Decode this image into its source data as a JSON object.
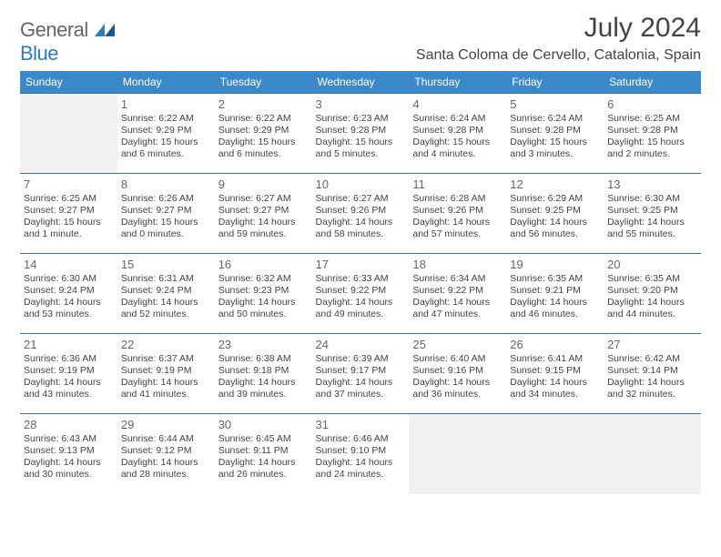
{
  "logo": {
    "top": "General",
    "bottom": "Blue",
    "top_color": "#666666",
    "bottom_color": "#2f7bbf"
  },
  "title": "July 2024",
  "location": "Santa Coloma de Cervello, Catalonia, Spain",
  "colors": {
    "header_bg": "#3b89c9",
    "header_text": "#ffffff",
    "cell_border": "#3b6f9c",
    "blank_bg": "#f1f1f1",
    "daynum": "#666666",
    "body_text": "#444444",
    "background": "#ffffff"
  },
  "dayNames": [
    "Sunday",
    "Monday",
    "Tuesday",
    "Wednesday",
    "Thursday",
    "Friday",
    "Saturday"
  ],
  "weeks": [
    [
      {
        "blank": true
      },
      {
        "day": 1,
        "sunrise": "6:22 AM",
        "sunset": "9:29 PM",
        "daylight": "15 hours and 6 minutes."
      },
      {
        "day": 2,
        "sunrise": "6:22 AM",
        "sunset": "9:29 PM",
        "daylight": "15 hours and 6 minutes."
      },
      {
        "day": 3,
        "sunrise": "6:23 AM",
        "sunset": "9:28 PM",
        "daylight": "15 hours and 5 minutes."
      },
      {
        "day": 4,
        "sunrise": "6:24 AM",
        "sunset": "9:28 PM",
        "daylight": "15 hours and 4 minutes."
      },
      {
        "day": 5,
        "sunrise": "6:24 AM",
        "sunset": "9:28 PM",
        "daylight": "15 hours and 3 minutes."
      },
      {
        "day": 6,
        "sunrise": "6:25 AM",
        "sunset": "9:28 PM",
        "daylight": "15 hours and 2 minutes."
      }
    ],
    [
      {
        "day": 7,
        "sunrise": "6:25 AM",
        "sunset": "9:27 PM",
        "daylight": "15 hours and 1 minute."
      },
      {
        "day": 8,
        "sunrise": "6:26 AM",
        "sunset": "9:27 PM",
        "daylight": "15 hours and 0 minutes."
      },
      {
        "day": 9,
        "sunrise": "6:27 AM",
        "sunset": "9:27 PM",
        "daylight": "14 hours and 59 minutes."
      },
      {
        "day": 10,
        "sunrise": "6:27 AM",
        "sunset": "9:26 PM",
        "daylight": "14 hours and 58 minutes."
      },
      {
        "day": 11,
        "sunrise": "6:28 AM",
        "sunset": "9:26 PM",
        "daylight": "14 hours and 57 minutes."
      },
      {
        "day": 12,
        "sunrise": "6:29 AM",
        "sunset": "9:25 PM",
        "daylight": "14 hours and 56 minutes."
      },
      {
        "day": 13,
        "sunrise": "6:30 AM",
        "sunset": "9:25 PM",
        "daylight": "14 hours and 55 minutes."
      }
    ],
    [
      {
        "day": 14,
        "sunrise": "6:30 AM",
        "sunset": "9:24 PM",
        "daylight": "14 hours and 53 minutes."
      },
      {
        "day": 15,
        "sunrise": "6:31 AM",
        "sunset": "9:24 PM",
        "daylight": "14 hours and 52 minutes."
      },
      {
        "day": 16,
        "sunrise": "6:32 AM",
        "sunset": "9:23 PM",
        "daylight": "14 hours and 50 minutes."
      },
      {
        "day": 17,
        "sunrise": "6:33 AM",
        "sunset": "9:22 PM",
        "daylight": "14 hours and 49 minutes."
      },
      {
        "day": 18,
        "sunrise": "6:34 AM",
        "sunset": "9:22 PM",
        "daylight": "14 hours and 47 minutes."
      },
      {
        "day": 19,
        "sunrise": "6:35 AM",
        "sunset": "9:21 PM",
        "daylight": "14 hours and 46 minutes."
      },
      {
        "day": 20,
        "sunrise": "6:35 AM",
        "sunset": "9:20 PM",
        "daylight": "14 hours and 44 minutes."
      }
    ],
    [
      {
        "day": 21,
        "sunrise": "6:36 AM",
        "sunset": "9:19 PM",
        "daylight": "14 hours and 43 minutes."
      },
      {
        "day": 22,
        "sunrise": "6:37 AM",
        "sunset": "9:19 PM",
        "daylight": "14 hours and 41 minutes."
      },
      {
        "day": 23,
        "sunrise": "6:38 AM",
        "sunset": "9:18 PM",
        "daylight": "14 hours and 39 minutes."
      },
      {
        "day": 24,
        "sunrise": "6:39 AM",
        "sunset": "9:17 PM",
        "daylight": "14 hours and 37 minutes."
      },
      {
        "day": 25,
        "sunrise": "6:40 AM",
        "sunset": "9:16 PM",
        "daylight": "14 hours and 36 minutes."
      },
      {
        "day": 26,
        "sunrise": "6:41 AM",
        "sunset": "9:15 PM",
        "daylight": "14 hours and 34 minutes."
      },
      {
        "day": 27,
        "sunrise": "6:42 AM",
        "sunset": "9:14 PM",
        "daylight": "14 hours and 32 minutes."
      }
    ],
    [
      {
        "day": 28,
        "sunrise": "6:43 AM",
        "sunset": "9:13 PM",
        "daylight": "14 hours and 30 minutes."
      },
      {
        "day": 29,
        "sunrise": "6:44 AM",
        "sunset": "9:12 PM",
        "daylight": "14 hours and 28 minutes."
      },
      {
        "day": 30,
        "sunrise": "6:45 AM",
        "sunset": "9:11 PM",
        "daylight": "14 hours and 26 minutes."
      },
      {
        "day": 31,
        "sunrise": "6:46 AM",
        "sunset": "9:10 PM",
        "daylight": "14 hours and 24 minutes."
      },
      {
        "blank": true
      },
      {
        "blank": true
      },
      {
        "blank": true
      }
    ]
  ]
}
